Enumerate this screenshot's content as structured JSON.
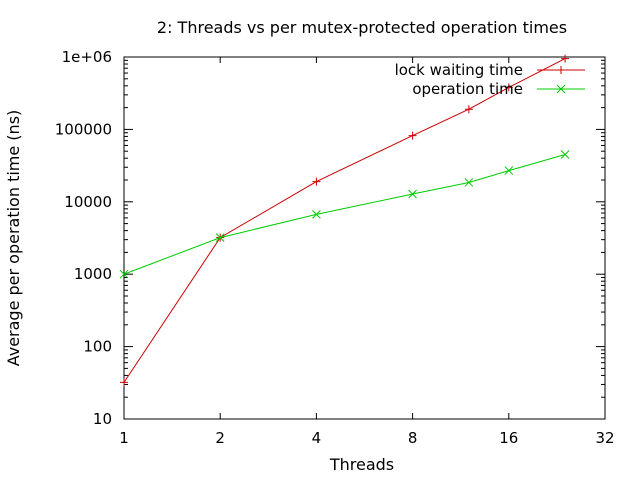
{
  "chart_data": {
    "type": "line",
    "title": "2: Threads vs per mutex-protected operation times",
    "xlabel": "Threads",
    "ylabel": "Average per operation time (ns)",
    "x_scale": "log2",
    "y_scale": "log10",
    "xlim": [
      1,
      32
    ],
    "ylim": [
      10,
      1000000
    ],
    "x_ticks": [
      {
        "value": 1,
        "label": "1"
      },
      {
        "value": 2,
        "label": "2"
      },
      {
        "value": 4,
        "label": "4"
      },
      {
        "value": 8,
        "label": "8"
      },
      {
        "value": 16,
        "label": "16"
      },
      {
        "value": 32,
        "label": "32"
      }
    ],
    "y_ticks": [
      {
        "value": 10,
        "label": "10"
      },
      {
        "value": 100,
        "label": "100"
      },
      {
        "value": 1000,
        "label": "1000"
      },
      {
        "value": 10000,
        "label": "10000"
      },
      {
        "value": 100000,
        "label": "100000"
      },
      {
        "value": 1000000,
        "label": "1e+06"
      }
    ],
    "grid": false,
    "legend_position": "top-right",
    "series": [
      {
        "name": "lock waiting time",
        "color": "#cc0000",
        "marker": "plus",
        "x": [
          1,
          2,
          4,
          8,
          12,
          16,
          24
        ],
        "y": [
          32,
          3200,
          19000,
          82000,
          190000,
          380000,
          950000
        ]
      },
      {
        "name": "operation time",
        "color": "#00cc00",
        "marker": "cross",
        "x": [
          1,
          2,
          4,
          8,
          12,
          16,
          24
        ],
        "y": [
          1000,
          3200,
          6700,
          12800,
          18500,
          27000,
          45000
        ]
      }
    ]
  }
}
